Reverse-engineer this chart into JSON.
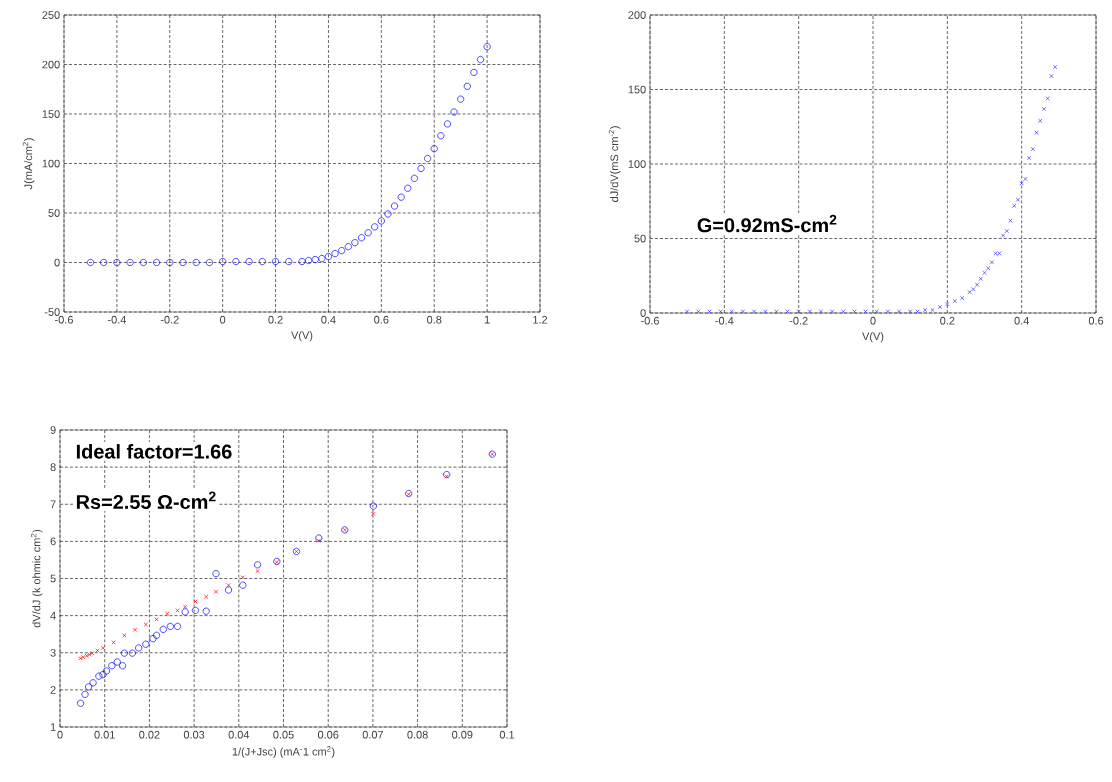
{
  "chart_data": [
    {
      "type": "scatter",
      "xlabel": "V(V)",
      "ylabel": "J(mA/cm$^{2}$)",
      "marker": "circle",
      "grid": true,
      "xlim": [
        -0.6,
        1.2
      ],
      "xticks": [
        -0.6,
        -0.4,
        -0.2,
        0,
        0.2,
        0.4,
        0.6,
        0.8,
        1,
        1.2
      ],
      "ylim": [
        -50,
        250
      ],
      "yticks": [
        -50,
        0,
        50,
        100,
        150,
        200,
        250
      ],
      "series": [
        {
          "color": "#0000ff",
          "x": [
            -0.5,
            -0.45,
            -0.4,
            -0.35,
            -0.3,
            -0.25,
            -0.2,
            -0.15,
            -0.1,
            -0.05,
            0,
            0.05,
            0.1,
            0.15,
            0.2,
            0.25,
            0.3,
            0.325,
            0.35,
            0.375,
            0.4,
            0.425,
            0.45,
            0.475,
            0.5,
            0.525,
            0.55,
            0.575,
            0.6,
            0.625,
            0.65,
            0.675,
            0.7,
            0.725,
            0.75,
            0.775,
            0.8,
            0.825,
            0.85,
            0.875,
            0.9,
            0.925,
            0.95,
            0.975,
            1
          ],
          "values": [
            0,
            0,
            0,
            0,
            0,
            0,
            0,
            0,
            0,
            0,
            1,
            1,
            1,
            1,
            1,
            1,
            1,
            2,
            3,
            4,
            6,
            9,
            12,
            16,
            20,
            25,
            30,
            36,
            42,
            49,
            57,
            66,
            75,
            85,
            95,
            105,
            115,
            128,
            140,
            152,
            165,
            178,
            192,
            205,
            218
          ]
        }
      ]
    },
    {
      "type": "scatter",
      "xlabel": "V(V)",
      "ylabel": "dJ/dV(mS cm$^{-2}$)",
      "marker": "cross",
      "grid": true,
      "xlim": [
        -0.6,
        0.6
      ],
      "xticks": [
        -0.6,
        -0.4,
        -0.2,
        0,
        0.2,
        0.4,
        0.6
      ],
      "ylim": [
        0,
        200
      ],
      "yticks": [
        0,
        50,
        100,
        150,
        200
      ],
      "annotations": [
        "G=0.92mS-cm$^{2}$"
      ],
      "series": [
        {
          "color": "#3333ff",
          "x": [
            -0.5,
            -0.47,
            -0.44,
            -0.41,
            -0.38,
            -0.35,
            -0.32,
            -0.29,
            -0.26,
            -0.23,
            -0.2,
            -0.17,
            -0.14,
            -0.11,
            -0.08,
            -0.05,
            -0.02,
            0.01,
            0.04,
            0.07,
            0.1,
            0.12,
            0.14,
            0.16,
            0.18,
            0.2,
            0.22,
            0.24,
            0.26,
            0.27,
            0.28,
            0.29,
            0.3,
            0.31,
            0.32,
            0.33,
            0.34,
            0.35,
            0.36,
            0.37,
            0.38,
            0.39,
            0.4,
            0.41,
            0.42,
            0.43,
            0.44,
            0.45,
            0.46,
            0.47,
            0.48,
            0.49
          ],
          "values": [
            1,
            1,
            1,
            1,
            1,
            1,
            1,
            1,
            1,
            1,
            1,
            1,
            1,
            1,
            1,
            1,
            1,
            1,
            1,
            1,
            1,
            1,
            2,
            2,
            4,
            6,
            8,
            10,
            14,
            16,
            19,
            23,
            27,
            30,
            34,
            40,
            40,
            52,
            55,
            62,
            72,
            76,
            87,
            90,
            104,
            110,
            121,
            129,
            137,
            144,
            159,
            165
          ]
        }
      ]
    },
    {
      "type": "scatter",
      "xlabel": "1/(J+Jsc) (mA$^{-}$1 cm$^{2}$)",
      "ylabel": "dV/dJ (k ohmic cm$^{2}$)",
      "grid": true,
      "xlim": [
        0,
        0.1
      ],
      "xticks": [
        0,
        0.01,
        0.02,
        0.03,
        0.04,
        0.05,
        0.06,
        0.07,
        0.08,
        0.09,
        0.1
      ],
      "ylim": [
        1,
        9
      ],
      "yticks": [
        1,
        2,
        3,
        4,
        5,
        6,
        7,
        8,
        9
      ],
      "annotations": [
        "Ideal factor=1.66",
        "Rs=2.55 Ω-cm$^{2}$"
      ],
      "series": [
        {
          "color": "#ff0000",
          "marker": "cross",
          "x": [
            0.0046,
            0.0052,
            0.006,
            0.0066,
            0.0072,
            0.0084,
            0.0096,
            0.012,
            0.0144,
            0.0168,
            0.0192,
            0.0216,
            0.024,
            0.0263,
            0.028,
            0.0303,
            0.0327,
            0.0349,
            0.0377,
            0.0409,
            0.0442,
            0.0485,
            0.0529,
            0.0579,
            0.0637,
            0.0701,
            0.078,
            0.0865,
            0.0967
          ],
          "values": [
            2.85,
            2.88,
            2.92,
            2.95,
            2.99,
            3.06,
            3.13,
            3.28,
            3.47,
            3.62,
            3.76,
            3.9,
            4.05,
            4.14,
            4.24,
            4.38,
            4.51,
            4.64,
            4.82,
            5.03,
            5.2,
            5.44,
            5.73,
            6.02,
            6.31,
            6.74,
            7.27,
            7.75,
            8.35
          ]
        },
        {
          "color": "#0000ff",
          "marker": "circle",
          "x": [
            0.0046,
            0.0056,
            0.0064,
            0.0074,
            0.0087,
            0.0096,
            0.0104,
            0.0116,
            0.0128,
            0.014,
            0.0144,
            0.0162,
            0.0176,
            0.0192,
            0.0208,
            0.0216,
            0.0231,
            0.0247,
            0.0263,
            0.028,
            0.0303,
            0.0327,
            0.0349,
            0.0377,
            0.0409,
            0.0442,
            0.0485,
            0.0529,
            0.0579,
            0.0637,
            0.0701,
            0.078,
            0.0865,
            0.0967
          ],
          "values": [
            1.64,
            1.88,
            2.08,
            2.19,
            2.37,
            2.41,
            2.51,
            2.65,
            2.75,
            2.65,
            2.99,
            2.99,
            3.13,
            3.23,
            3.38,
            3.47,
            3.63,
            3.71,
            3.71,
            4.1,
            4.14,
            4.12,
            5.13,
            4.69,
            4.82,
            5.37,
            5.46,
            5.73,
            6.09,
            6.31,
            6.95,
            7.29,
            7.8,
            8.35
          ]
        }
      ]
    }
  ]
}
